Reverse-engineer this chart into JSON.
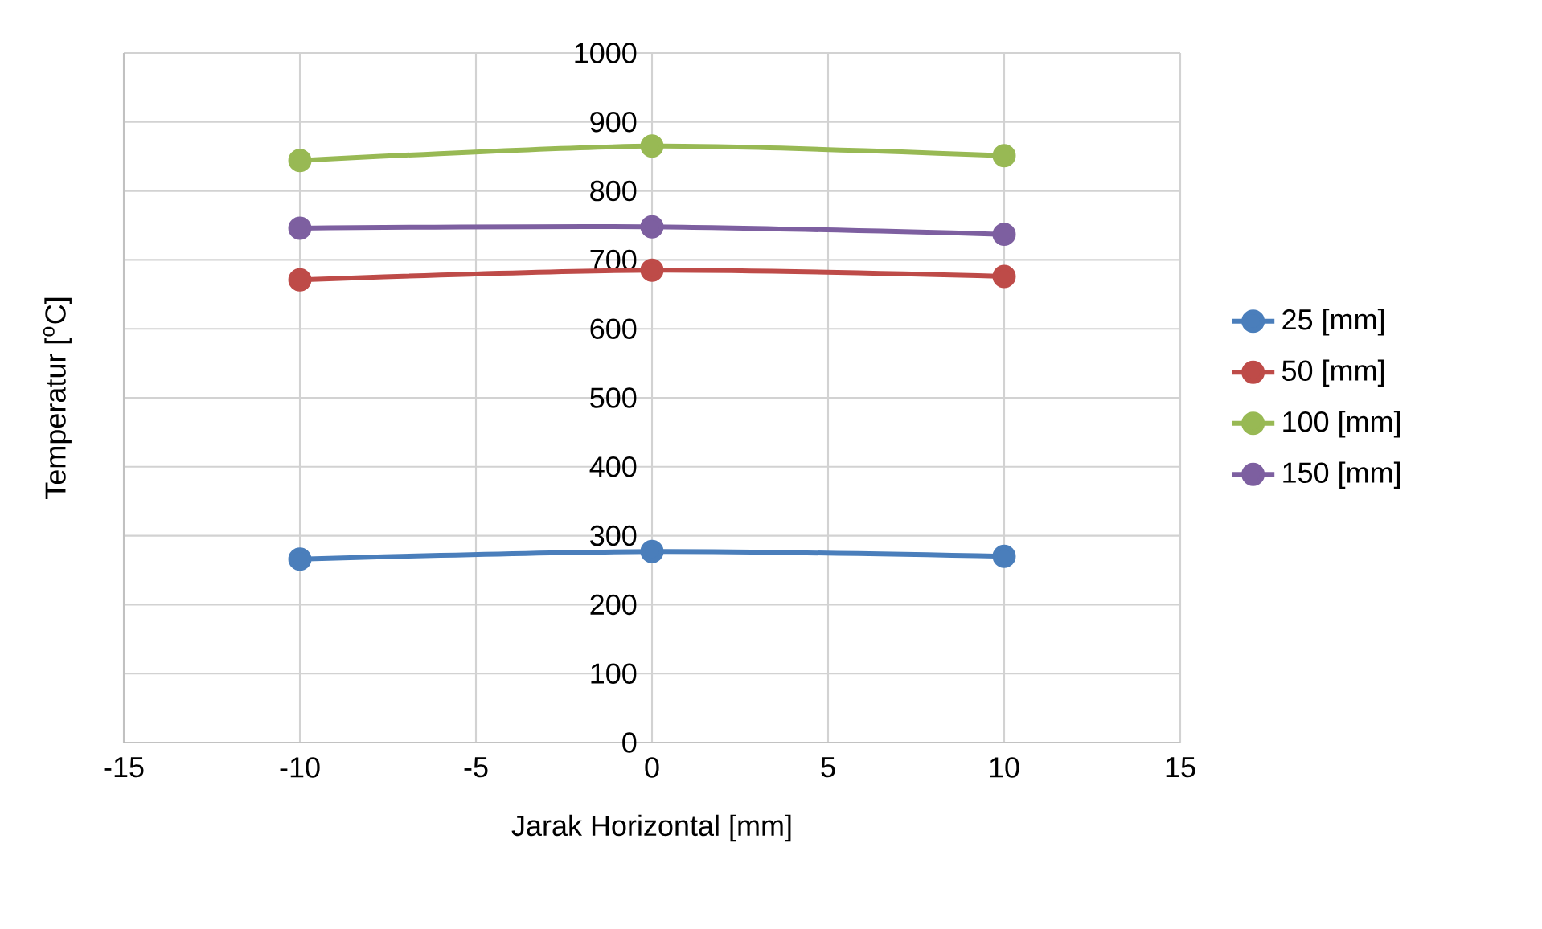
{
  "chart_data": {
    "type": "line",
    "xlabel": "Jarak Horizontal [mm]",
    "ylabel": "Temperatur [$^{o}$C]",
    "x": [
      -10,
      0,
      10
    ],
    "series": [
      {
        "name": "25 [mm]",
        "color": "#4a7ebb",
        "values": [
          266,
          277,
          270
        ]
      },
      {
        "name": "50 [mm]",
        "color": "#be4b48",
        "values": [
          671,
          685,
          676
        ]
      },
      {
        "name": "100 [mm]",
        "color": "#98b954",
        "values": [
          844,
          865,
          851
        ]
      },
      {
        "name": "150 [mm]",
        "color": "#7d5fa0",
        "values": [
          746,
          748,
          737
        ]
      }
    ],
    "xlim": [
      -15,
      15
    ],
    "xticks": [
      -15,
      -10,
      -5,
      0,
      5,
      10,
      15
    ],
    "ylim": [
      0,
      1000
    ],
    "yticks": [
      0,
      100,
      200,
      300,
      400,
      500,
      600,
      700,
      800,
      900,
      1000
    ],
    "grid": true,
    "legend": "right",
    "marker": "circle",
    "line_style": "solid"
  }
}
